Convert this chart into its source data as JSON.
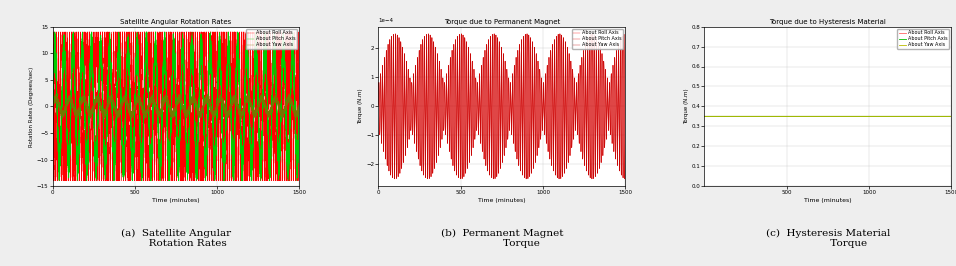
{
  "plot_a": {
    "title": "Satellite Angular Rotation Rates",
    "xlabel": "Time (minutes)",
    "ylabel": "Rotation Rates (Degrees/sec)",
    "xlim": [
      0,
      1500
    ],
    "ylim": [
      -15,
      15
    ],
    "yticks": [
      -15,
      -10,
      -5,
      0,
      5,
      10,
      15
    ],
    "xticks": [
      0,
      500,
      1000,
      1500
    ],
    "legend": [
      "About Roll Axis",
      "About Pitch Axis",
      "About Yaw Axis"
    ],
    "colors": [
      "#ff0000",
      "#00cc00",
      "#777700"
    ]
  },
  "plot_b": {
    "title": "Torque due to Permanent Magnet",
    "xlabel": "Time (minutes)",
    "ylabel": "Torque (N.m)",
    "xlim": [
      0,
      1500
    ],
    "xticks": [
      0,
      500,
      1000,
      1500
    ],
    "legend": [
      "About Roll Axis",
      "About Pitch Axis",
      "About Yaw Axis"
    ],
    "colors": [
      "#ff0000",
      "#dd0000",
      "#bb0000"
    ],
    "amp": 0.00025
  },
  "plot_c": {
    "title": "Torque due to Hysteresis Material",
    "xlabel": "Time (minutes)",
    "ylabel": "Torque (N.m)",
    "xlim": [
      0,
      1500
    ],
    "ylim": [
      0,
      0.8
    ],
    "xticks": [
      500,
      1000,
      1500
    ],
    "yticks": [
      0.0,
      0.1,
      0.2,
      0.3,
      0.4,
      0.5,
      0.6,
      0.7,
      0.8
    ],
    "legend": [
      "About Roll Axis",
      "About Pitch Axis",
      "About Yaw Axis"
    ],
    "colors": [
      "#ff6666",
      "#00bb00",
      "#bbbb00"
    ],
    "flat_value": 0.35
  },
  "captions": [
    "(a)  Satellite Angular\n       Rotation Rates",
    "(b)  Permanent Magnet\n            Torque",
    "(c)  Hysteresis Material\n             Torque"
  ],
  "bg_color": "#eeeeee",
  "plot_bg": "#ffffff",
  "fig_width": 9.56,
  "fig_height": 2.66,
  "dpi": 100
}
